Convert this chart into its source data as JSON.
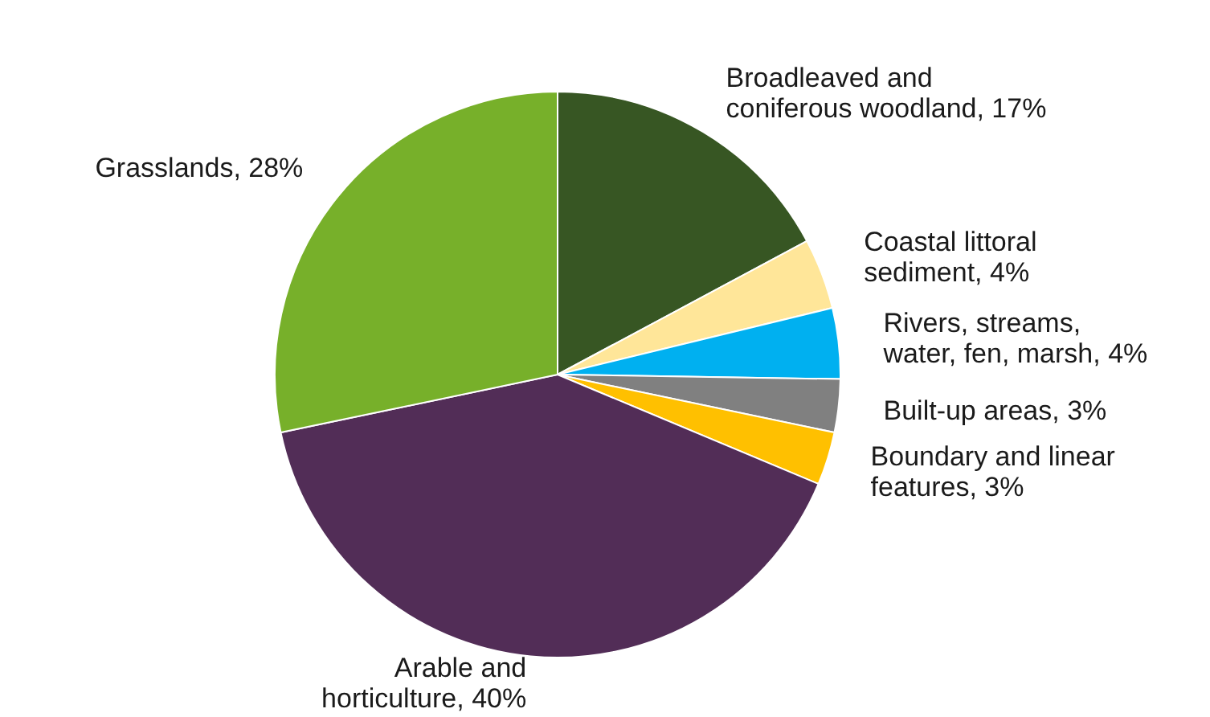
{
  "chart_data": {
    "type": "pie",
    "categories": [
      "Broadleaved and coniferous woodland",
      "Coastal littoral sediment",
      "Rivers, streams, water, fen, marsh",
      "Built-up areas",
      "Boundary and linear features",
      "Arable and horticulture",
      "Grasslands"
    ],
    "values": [
      17,
      4,
      4,
      3,
      3,
      40,
      28
    ],
    "value_labels": [
      "17%",
      "4%",
      "4%",
      "3%",
      "3%",
      "40%",
      "28%"
    ],
    "colors": [
      "#375623",
      "#ffe699",
      "#00b0f0",
      "#808080",
      "#ffc000",
      "#522d57",
      "#77b02a"
    ]
  }
}
